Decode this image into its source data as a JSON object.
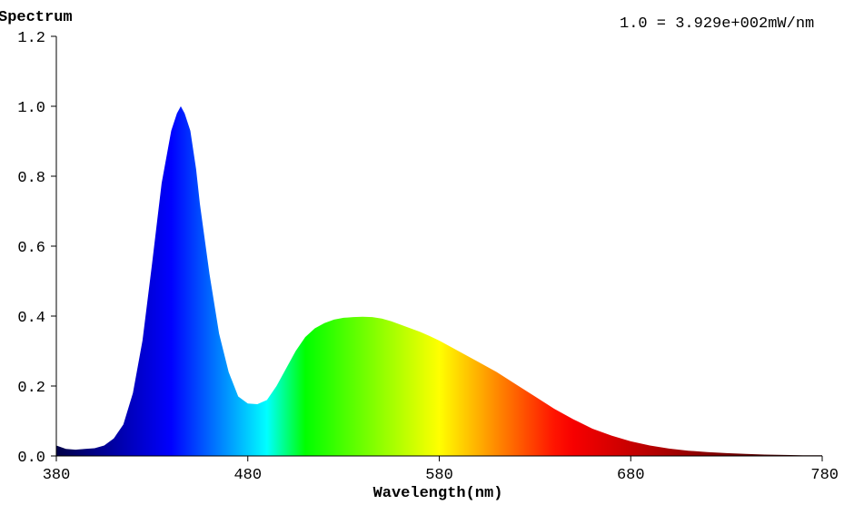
{
  "chart_data": {
    "type": "area",
    "title": "Spectrum",
    "annotation": "1.0 = 3.929e+002mW/nm",
    "xlabel": "Wavelength(nm)",
    "ylabel": "",
    "xlim": [
      380,
      780
    ],
    "ylim": [
      0,
      1.2
    ],
    "x_ticks": [
      "380",
      "480",
      "580",
      "680",
      "780"
    ],
    "y_ticks": [
      "0.0",
      "0.2",
      "0.4",
      "0.6",
      "0.8",
      "1.0",
      "1.2"
    ],
    "grid": false,
    "fill": "wavelength color spectrum",
    "x": [
      380,
      385,
      390,
      395,
      400,
      405,
      410,
      415,
      420,
      425,
      430,
      435,
      440,
      443,
      445,
      447,
      450,
      453,
      455,
      460,
      465,
      470,
      475,
      480,
      485,
      490,
      495,
      500,
      505,
      510,
      515,
      520,
      525,
      530,
      535,
      540,
      545,
      550,
      555,
      560,
      565,
      570,
      575,
      580,
      585,
      590,
      595,
      600,
      610,
      620,
      630,
      640,
      650,
      660,
      670,
      680,
      690,
      700,
      710,
      720,
      730,
      740,
      750,
      760,
      770,
      780
    ],
    "values": [
      0.03,
      0.02,
      0.018,
      0.02,
      0.022,
      0.03,
      0.05,
      0.09,
      0.18,
      0.33,
      0.55,
      0.78,
      0.93,
      0.98,
      1.0,
      0.98,
      0.93,
      0.82,
      0.72,
      0.52,
      0.35,
      0.24,
      0.17,
      0.15,
      0.148,
      0.16,
      0.2,
      0.25,
      0.3,
      0.34,
      0.365,
      0.38,
      0.39,
      0.395,
      0.397,
      0.398,
      0.397,
      0.393,
      0.385,
      0.375,
      0.365,
      0.355,
      0.343,
      0.33,
      0.315,
      0.3,
      0.285,
      0.27,
      0.24,
      0.205,
      0.17,
      0.135,
      0.105,
      0.078,
      0.058,
      0.042,
      0.03,
      0.021,
      0.015,
      0.011,
      0.008,
      0.006,
      0.004,
      0.003,
      0.002,
      0.002
    ]
  }
}
